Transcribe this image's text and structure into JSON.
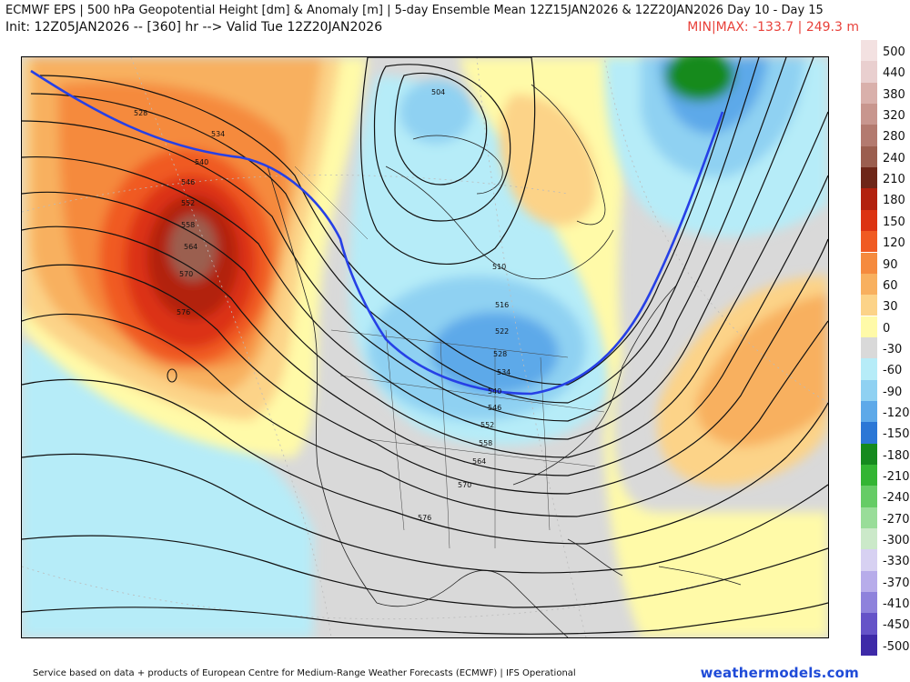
{
  "header": {
    "title": "ECMWF EPS | 500 hPa Geopotential Height [dm] & Anomaly [m] | 5-day Ensemble Mean 12Z15JAN2026 & 12Z20JAN2026   Day 10 - Day 15",
    "init": "Init: 12Z05JAN2026 -- [360] hr --> Valid Tue 12Z20JAN2026",
    "minmax": "MIN|MAX: -133.7 | 249.3 m"
  },
  "footer": {
    "credit": "Service based on data + products of European Centre for Medium-Range Weather Forecasts (ECMWF) | IFS Operational",
    "brand": "weathermodels.com"
  },
  "legend": {
    "ticks": [
      "500",
      "440",
      "380",
      "320",
      "280",
      "240",
      "210",
      "180",
      "150",
      "120",
      "90",
      "60",
      "30",
      "0",
      "-30",
      "-60",
      "-90",
      "-120",
      "-150",
      "-180",
      "-210",
      "-240",
      "-270",
      "-300",
      "-330",
      "-370",
      "-410",
      "-450",
      "-500"
    ],
    "colors": [
      "#f3e1e1",
      "#e9cfcf",
      "#d9b0ab",
      "#c8968e",
      "#b37a6f",
      "#9b5e4f",
      "#6e2618",
      "#b2210e",
      "#dc3312",
      "#f05a22",
      "#f58a3e",
      "#f8b05f",
      "#fcd388",
      "#fffaa8",
      "#d9d9d9",
      "#b6ecf8",
      "#8fd1f2",
      "#5da9e9",
      "#2b77d6",
      "#158a1e",
      "#33b533",
      "#66cc66",
      "#99dd99",
      "#cbe9c9",
      "#d7d1f2",
      "#b7acea",
      "#8e82dc",
      "#6553c8",
      "#3e2aa8",
      "#2c0f8c",
      "#6a1a9e",
      "#a416a6",
      "#dc1ab2",
      "#f04ac6",
      "#f37ad8"
    ],
    "colors_visible": 29
  },
  "map": {
    "contour_labels": [
      "528",
      "534",
      "540",
      "546",
      "552",
      "558",
      "564",
      "570",
      "576",
      "504",
      "510",
      "516",
      "522",
      "528",
      "534",
      "540",
      "546",
      "552",
      "558",
      "564",
      "570",
      "576"
    ]
  }
}
